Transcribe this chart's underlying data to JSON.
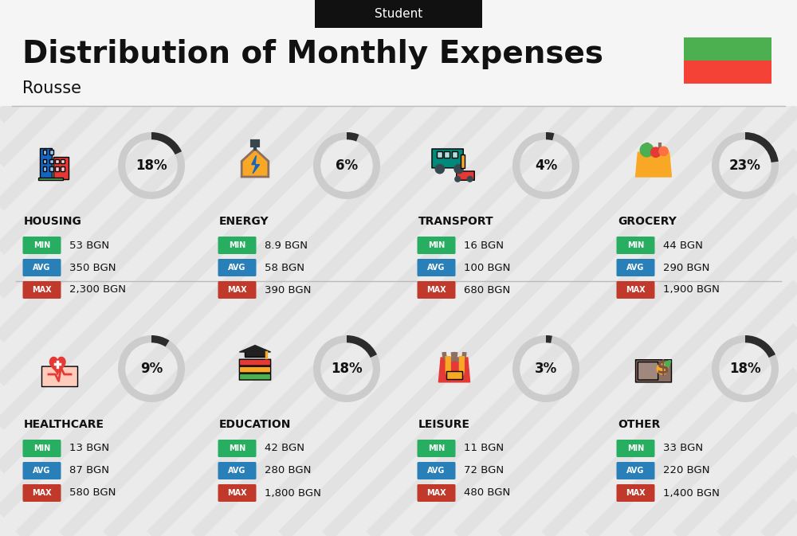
{
  "title": "Distribution of Monthly Expenses",
  "subtitle": "Student",
  "location": "Rousse",
  "bg_color": "#ebebeb",
  "categories": [
    {
      "name": "HOUSING",
      "pct": 18,
      "min": "53 BGN",
      "avg": "350 BGN",
      "max": "2,300 BGN",
      "row": 0,
      "col": 0
    },
    {
      "name": "ENERGY",
      "pct": 6,
      "min": "8.9 BGN",
      "avg": "58 BGN",
      "max": "390 BGN",
      "row": 0,
      "col": 1
    },
    {
      "name": "TRANSPORT",
      "pct": 4,
      "min": "16 BGN",
      "avg": "100 BGN",
      "max": "680 BGN",
      "row": 0,
      "col": 2
    },
    {
      "name": "GROCERY",
      "pct": 23,
      "min": "44 BGN",
      "avg": "290 BGN",
      "max": "1,900 BGN",
      "row": 0,
      "col": 3
    },
    {
      "name": "HEALTHCARE",
      "pct": 9,
      "min": "13 BGN",
      "avg": "87 BGN",
      "max": "580 BGN",
      "row": 1,
      "col": 0
    },
    {
      "name": "EDUCATION",
      "pct": 18,
      "min": "42 BGN",
      "avg": "280 BGN",
      "max": "1,800 BGN",
      "row": 1,
      "col": 1
    },
    {
      "name": "LEISURE",
      "pct": 3,
      "min": "11 BGN",
      "avg": "72 BGN",
      "max": "480 BGN",
      "row": 1,
      "col": 2
    },
    {
      "name": "OTHER",
      "pct": 18,
      "min": "33 BGN",
      "avg": "220 BGN",
      "max": "1,400 BGN",
      "row": 1,
      "col": 3
    }
  ],
  "min_color": "#27ae60",
  "avg_color": "#2980b9",
  "max_color": "#c0392b",
  "arc_dark": "#2c2c2c",
  "arc_light": "#cccccc",
  "flag_green": "#4caf50",
  "flag_red": "#f44336",
  "stripe_color": "#d8d8d8",
  "icon_colors": {
    "HOUSING": [
      "#1565c0",
      "#e53935",
      "#f9a825"
    ],
    "ENERGY": [
      "#00838f",
      "#f9a825",
      "#8d6e63"
    ],
    "TRANSPORT": [
      "#00897b",
      "#f9a825",
      "#e53935"
    ],
    "GROCERY": [
      "#f9a825",
      "#e53935",
      "#66bb6a"
    ],
    "HEALTHCARE": [
      "#e53935",
      "#ec407a",
      "#1565c0"
    ],
    "EDUCATION": [
      "#5e35b1",
      "#f9a825",
      "#66bb6a"
    ],
    "LEISURE": [
      "#e53935",
      "#f9a825",
      "#ff7043"
    ],
    "OTHER": [
      "#8d6e63",
      "#f9a825",
      "#66bb6a"
    ]
  }
}
